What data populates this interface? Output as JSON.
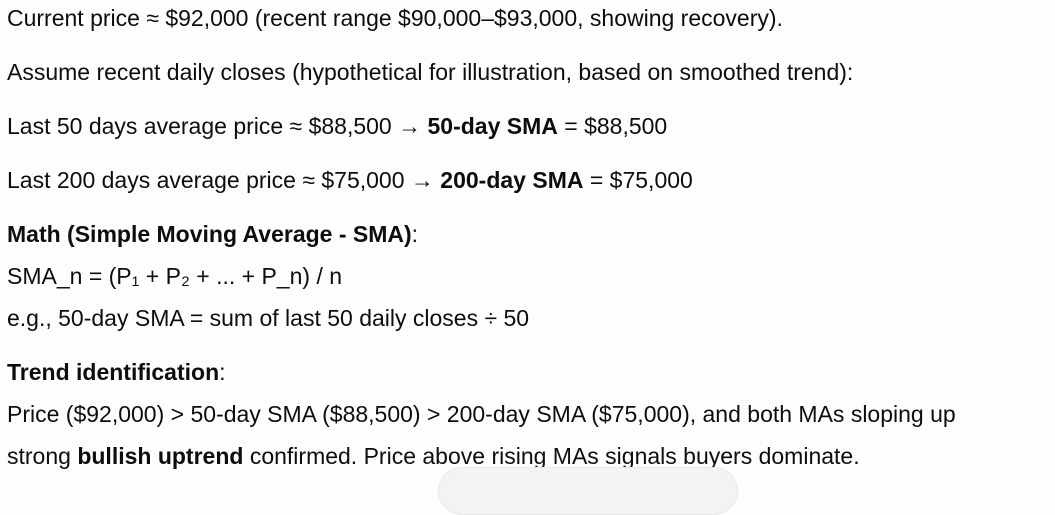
{
  "colors": {
    "background": "#fdfdfd",
    "text": "#0d0d0d",
    "pill_fill": "#f3f3f3",
    "pill_border": "#e9e9e9"
  },
  "message": {
    "para1": {
      "text": "Current price ≈ $92,000 (recent range $90,000–$93,000, showing recovery)."
    },
    "para2": {
      "text": "Assume recent daily closes (hypothetical for illustration, based on smoothed trend):"
    },
    "para3": {
      "pre": "Last 50 days average price ≈ $88,500 → ",
      "bold": "50-day SMA",
      "post": " = $88,500"
    },
    "para4": {
      "pre": "Last 200 days average price ≈ $75,000 → ",
      "bold": "200-day SMA",
      "post": " = $75,000"
    },
    "para5": {
      "heading_bold": "Math (Simple Moving Average - SMA)",
      "heading_colon": ":",
      "formula_line": "SMA_n = (P₁ + P₂ + ... + P_n) / n",
      "example_line": "e.g., 50-day SMA = sum of last 50 daily closes ÷ 50"
    },
    "para6": {
      "heading_bold": "Trend identification",
      "heading_colon": ":",
      "comparison_line": "Price ($92,000) > 50-day SMA ($88,500) > 200-day SMA ($75,000), and both MAs sloping up",
      "conclusion_pre": "strong ",
      "conclusion_bold": "bullish uptrend",
      "conclusion_post": " confirmed. Price above rising MAs signals buyers dominate."
    }
  }
}
